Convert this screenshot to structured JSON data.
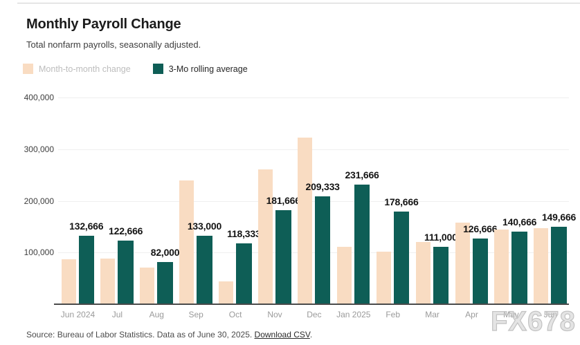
{
  "header": {
    "title": "Monthly Payroll Change",
    "subtitle": "Total nonfarm payrolls, seasonally adjusted."
  },
  "legend": [
    {
      "label": "Month-to-month change",
      "color": "#f9dcc2"
    },
    {
      "label": "3-Mo rolling average",
      "color": "#0e5e56"
    }
  ],
  "chart_data": {
    "type": "bar",
    "title": "Monthly Payroll Change",
    "subtitle": "Total nonfarm payrolls, seasonally adjusted.",
    "categories": [
      "Jun 2024",
      "Jul",
      "Aug",
      "Sep",
      "Oct",
      "Nov",
      "Dec",
      "Jan 2025",
      "Feb",
      "Mar",
      "Apr",
      "May",
      "Jun"
    ],
    "series": [
      {
        "name": "Month-to-month change",
        "color": "#f9dcc2",
        "values": [
          87000,
          88000,
          71000,
          240000,
          44000,
          261000,
          323000,
          111000,
          102000,
          120000,
          158000,
          144000,
          147000
        ]
      },
      {
        "name": "3-Mo rolling average",
        "color": "#0e5e56",
        "values": [
          132666,
          122666,
          82000,
          133000,
          118333,
          181666,
          209333,
          231666,
          178666,
          111000,
          126666,
          140666,
          149666
        ],
        "labels": [
          "132,666",
          "122,666",
          "82,000",
          "133,000",
          "118,333",
          "181,666",
          "209,333",
          "231,666",
          "178,666",
          "111,000",
          "126,666",
          "140,666",
          "149,666"
        ]
      }
    ],
    "xlabel": "",
    "ylabel": "",
    "ylim": [
      0,
      400000
    ],
    "yticks": [
      {
        "value": 100000,
        "label": "100,000"
      },
      {
        "value": 200000,
        "label": "200,000"
      },
      {
        "value": 300000,
        "label": "300,000"
      },
      {
        "value": 400000,
        "label": "400,000"
      }
    ],
    "grid": true,
    "legend_position": "top-left",
    "value_labels_on": "3-Mo rolling average"
  },
  "footer": {
    "source_text": "Source: Bureau of Labor Statistics. Data as of June 30, 2025. ",
    "link_label": "Download CSV",
    "after_link": "."
  },
  "watermark": "FX678"
}
